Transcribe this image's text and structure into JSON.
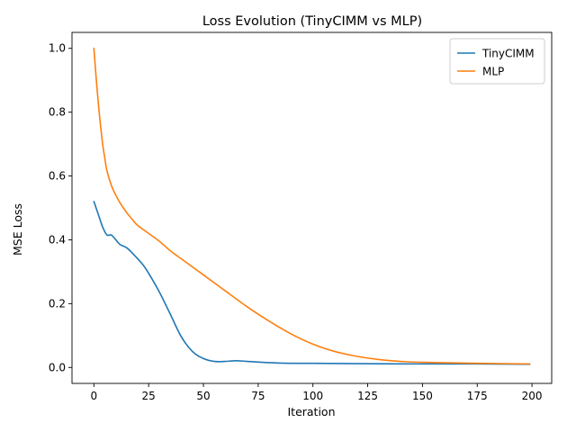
{
  "chart_data": {
    "type": "line",
    "title": "Loss Evolution (TinyCIMM vs MLP)",
    "xlabel": "Iteration",
    "ylabel": "MSE Loss",
    "xlim": [
      -10,
      209
    ],
    "ylim": [
      -0.05,
      1.05
    ],
    "xticks": [
      0,
      25,
      50,
      75,
      100,
      125,
      150,
      175,
      200
    ],
    "yticks": [
      0.0,
      0.2,
      0.4,
      0.6,
      0.8,
      1.0
    ],
    "xtick_labels": [
      "0",
      "25",
      "50",
      "75",
      "100",
      "125",
      "150",
      "175",
      "200"
    ],
    "ytick_labels": [
      "0.0",
      "0.2",
      "0.4",
      "0.6",
      "0.8",
      "1.0"
    ],
    "grid": false,
    "legend_position": "upper right",
    "series": [
      {
        "name": "TinyCIMM",
        "color": "#1f77b4",
        "x": [
          0,
          2,
          4,
          6,
          8,
          10,
          12,
          15,
          18,
          22,
          25,
          30,
          35,
          40,
          45,
          50,
          55,
          60,
          65,
          70,
          80,
          90,
          100,
          120,
          150,
          175,
          199
        ],
        "values": [
          0.52,
          0.48,
          0.44,
          0.415,
          0.415,
          0.4,
          0.385,
          0.375,
          0.355,
          0.325,
          0.295,
          0.235,
          0.165,
          0.095,
          0.05,
          0.028,
          0.019,
          0.019,
          0.021,
          0.019,
          0.015,
          0.013,
          0.013,
          0.012,
          0.011,
          0.011,
          0.01
        ]
      },
      {
        "name": "MLP",
        "color": "#ff7f0e",
        "x": [
          0,
          1,
          2,
          3,
          4,
          5,
          6,
          8,
          10,
          12,
          15,
          18,
          20,
          25,
          30,
          35,
          40,
          45,
          50,
          60,
          70,
          80,
          90,
          100,
          110,
          120,
          130,
          140,
          150,
          175,
          199
        ],
        "values": [
          1.0,
          0.91,
          0.83,
          0.76,
          0.7,
          0.655,
          0.615,
          0.57,
          0.54,
          0.515,
          0.485,
          0.46,
          0.445,
          0.42,
          0.395,
          0.365,
          0.34,
          0.315,
          0.29,
          0.24,
          0.19,
          0.145,
          0.105,
          0.073,
          0.05,
          0.035,
          0.025,
          0.019,
          0.016,
          0.013,
          0.011
        ]
      }
    ]
  }
}
